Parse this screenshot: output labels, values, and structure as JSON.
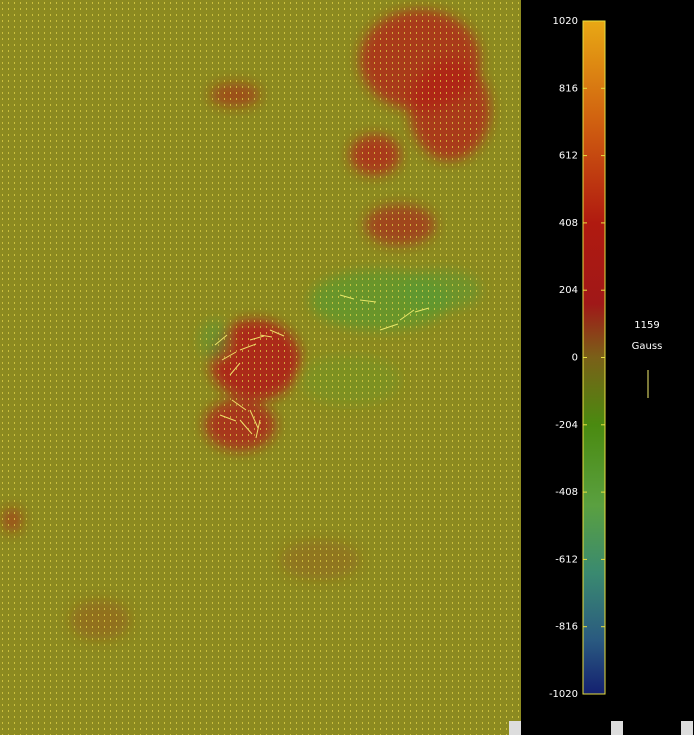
{
  "colorbar": {
    "range": [
      -1020,
      1020
    ],
    "ticks": [
      1020,
      816,
      612,
      408,
      204,
      0,
      -204,
      -408,
      -612,
      -816,
      -1020
    ]
  },
  "vector_scale": {
    "value": "1159",
    "unit": "Gauss"
  }
}
